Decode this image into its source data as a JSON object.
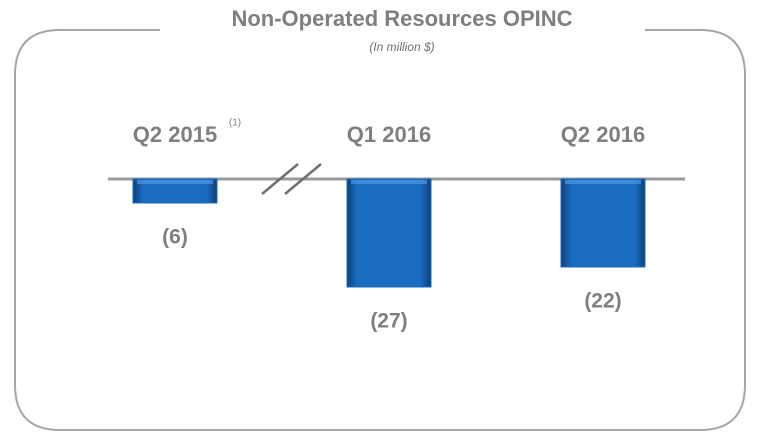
{
  "chart_data": {
    "type": "bar",
    "title": "Non-Operated Resources OPINC",
    "subtitle": "(In million $)",
    "categories": [
      "Q2 2015",
      "Q1 2016",
      "Q2 2016"
    ],
    "category_notes": [
      "(1)",
      null,
      null
    ],
    "values": [
      -6,
      -27,
      -22
    ],
    "value_labels": [
      "(6)",
      "(27)",
      "(22)"
    ],
    "color": "#1a6cc0"
  }
}
